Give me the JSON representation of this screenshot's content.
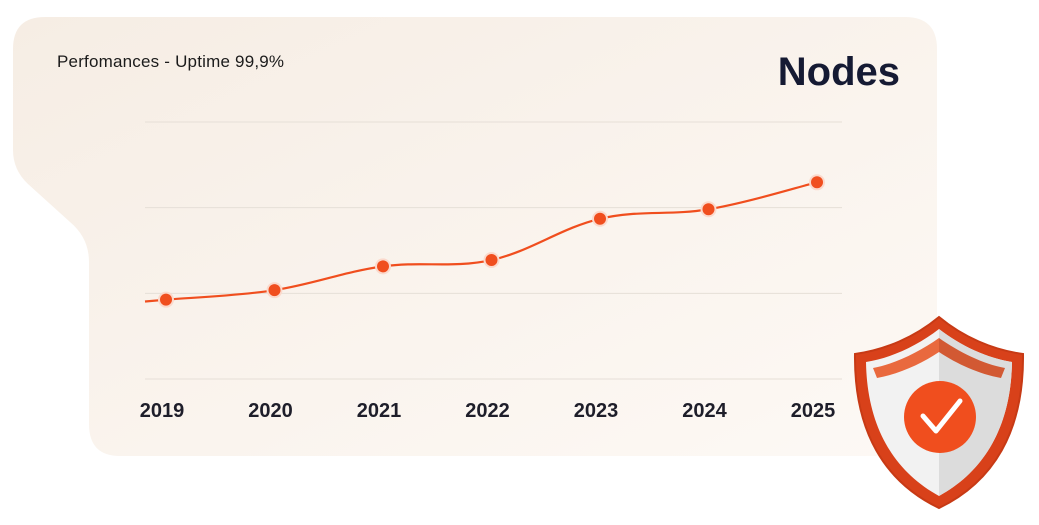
{
  "card": {
    "subtitle": "Perfomances - Uptime 99,9%",
    "title": "Nodes"
  },
  "colors": {
    "accent": "#f04e1e",
    "card_bg_start": "#f6ede4",
    "card_bg_end": "#fdf9f5",
    "grid": "#e6dfd7",
    "title": "#151a33"
  },
  "shield": {
    "icon": "shield-check-icon"
  },
  "chart_data": {
    "type": "line",
    "categories": [
      "2019",
      "2020",
      "2021",
      "2022",
      "2023",
      "2024",
      "2025"
    ],
    "series": [
      {
        "values": [
          38,
          44,
          59,
          63,
          89,
          95,
          112
        ]
      }
    ],
    "ylim": [
      -12,
      150
    ],
    "grid": true,
    "legend": "none",
    "curve": "smooth"
  }
}
